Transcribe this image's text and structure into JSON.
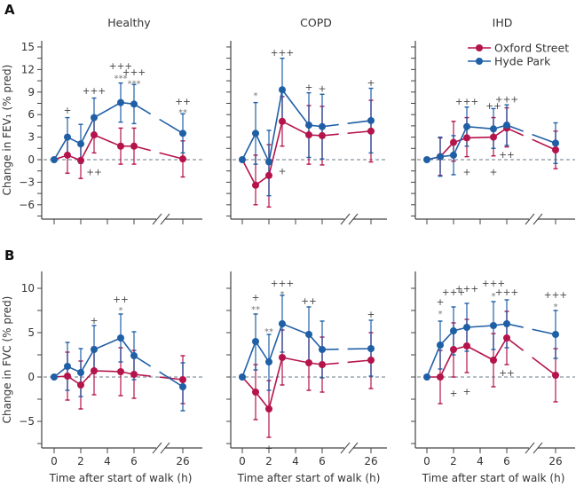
{
  "chart_data": {
    "type": "line",
    "legend": {
      "position": "top-right",
      "entries": [
        {
          "name": "Oxford Street",
          "color": "#b5134b"
        },
        {
          "name": "Hyde Park",
          "color": "#1f5fa6"
        }
      ]
    },
    "colors": {
      "oxford": "#b5134b",
      "hyde": "#1f5fa6",
      "axis": "#444444",
      "zero_line": "#6b7a87"
    },
    "x": [
      0,
      1,
      2,
      3,
      5,
      6,
      26
    ],
    "x_ticks": [
      0,
      2,
      4,
      6,
      26
    ],
    "x_tick_labels": [
      "0",
      "2",
      "4",
      "6",
      "26"
    ],
    "x_break": "between 6 and 26",
    "xlabel": "Time after start of walk (h)",
    "rows": [
      {
        "letter": "A",
        "ylabel": "Change in FEV₁ (% pred)",
        "ylim": [
          -7.5,
          16.5
        ],
        "y_ticks": [
          15,
          12,
          9,
          6,
          3,
          0,
          -3,
          -6
        ],
        "y_tick_labels": [
          "15",
          "12",
          "9",
          "6",
          "3",
          "0",
          "−3",
          "−6"
        ],
        "y_minor_step": 1.5,
        "show_x_tick_labels": false,
        "panels": [
          {
            "title": "Healthy",
            "series": [
              {
                "name": "Oxford Street",
                "values": [
                  0,
                  0.6,
                  -0.1,
                  3.3,
                  1.8,
                  1.8,
                  0.1
                ],
                "lower": [
                  0,
                  -1.8,
                  -2.5,
                  0.9,
                  -0.6,
                  -0.6,
                  -2.3
                ],
                "upper": [
                  0,
                  3.0,
                  2.3,
                  5.7,
                  4.2,
                  4.2,
                  2.5
                ]
              },
              {
                "name": "Hyde Park",
                "values": [
                  0,
                  3.0,
                  2.1,
                  5.6,
                  7.6,
                  7.4,
                  3.5
                ],
                "lower": [
                  0,
                  0.4,
                  -0.5,
                  3.0,
                  5.0,
                  4.8,
                  0.9
                ],
                "upper": [
                  0,
                  5.6,
                  4.7,
                  8.2,
                  10.2,
                  10.0,
                  6.1
                ]
              }
            ],
            "annotations": [
              {
                "x": 1,
                "y": 6.6,
                "text": "+",
                "kind": "plus"
              },
              {
                "x": 3,
                "y": 9.2,
                "text": "+++",
                "kind": "plus"
              },
              {
                "x": 5,
                "y": 12.5,
                "text": "+++",
                "kind": "plus"
              },
              {
                "x": 5,
                "y": 10.9,
                "text": "***",
                "kind": "star"
              },
              {
                "x": 6,
                "y": 11.7,
                "text": "+++",
                "kind": "plus"
              },
              {
                "x": 6,
                "y": 10.2,
                "text": "***",
                "kind": "star"
              },
              {
                "x": 26,
                "y": 7.8,
                "text": "++",
                "kind": "plus"
              },
              {
                "x": 26,
                "y": 6.4,
                "text": "**",
                "kind": "star"
              },
              {
                "x": 3,
                "y": -1.6,
                "text": "++",
                "kind": "plus"
              }
            ]
          },
          {
            "title": "COPD",
            "series": [
              {
                "name": "Oxford Street",
                "values": [
                  0,
                  -3.4,
                  -2.1,
                  5.1,
                  3.3,
                  3.2,
                  3.8
                ],
                "lower": [
                  0,
                  -6.0,
                  -6.3,
                  1.8,
                  -0.6,
                  -0.7,
                  -0.3
                ],
                "upper": [
                  0,
                  0.6,
                  2.0,
                  8.4,
                  7.2,
                  7.1,
                  7.9
                ]
              },
              {
                "name": "Hyde Park",
                "values": [
                  0,
                  3.5,
                  -0.3,
                  9.3,
                  4.6,
                  4.4,
                  5.2
                ],
                "lower": [
                  0,
                  -0.6,
                  -4.8,
                  5.1,
                  0.3,
                  0.1,
                  0.9
                ],
                "upper": [
                  0,
                  7.6,
                  3.9,
                  13.5,
                  8.9,
                  8.7,
                  9.5
                ]
              }
            ],
            "annotations": [
              {
                "x": 1,
                "y": 8.6,
                "text": "*",
                "kind": "star"
              },
              {
                "x": 3,
                "y": 14.3,
                "text": "+++",
                "kind": "plus"
              },
              {
                "x": 5,
                "y": 9.7,
                "text": "+",
                "kind": "plus"
              },
              {
                "x": 6,
                "y": 9.5,
                "text": "+",
                "kind": "plus"
              },
              {
                "x": 26,
                "y": 10.3,
                "text": "+",
                "kind": "plus"
              },
              {
                "x": 3,
                "y": -1.5,
                "text": "+",
                "kind": "plus"
              }
            ]
          },
          {
            "title": "IHD",
            "series": [
              {
                "name": "Oxford Street",
                "values": [
                  0,
                  0.4,
                  2.3,
                  2.9,
                  3.0,
                  4.2,
                  1.3
                ],
                "lower": [
                  0,
                  -2.1,
                  -0.2,
                  0.4,
                  0.5,
                  1.7,
                  -1.2
                ],
                "upper": [
                  0,
                  2.9,
                  5.1,
                  5.6,
                  5.6,
                  6.9,
                  3.8
                ]
              },
              {
                "name": "Hyde Park",
                "values": [
                  0,
                  0.4,
                  0.6,
                  4.4,
                  4.1,
                  4.6,
                  2.2
                ],
                "lower": [
                  0,
                  -2.2,
                  -2.0,
                  1.8,
                  1.5,
                  1.9,
                  -0.5
                ],
                "upper": [
                  0,
                  3.0,
                  3.2,
                  7.0,
                  6.8,
                  7.3,
                  4.9
                ]
              }
            ],
            "annotations": [
              {
                "x": 3,
                "y": 7.8,
                "text": "+++",
                "kind": "plus"
              },
              {
                "x": 5,
                "y": 7.2,
                "text": "++",
                "kind": "plus"
              },
              {
                "x": 6,
                "y": 8.1,
                "text": "+++",
                "kind": "plus"
              },
              {
                "x": 3,
                "y": -1.6,
                "text": "+",
                "kind": "plus"
              },
              {
                "x": 5,
                "y": -1.6,
                "text": "+",
                "kind": "plus"
              },
              {
                "x": 6,
                "y": 0.7,
                "text": "++",
                "kind": "plus"
              }
            ]
          }
        ]
      },
      {
        "letter": "B",
        "ylabel": "Change in FVC (% pred)",
        "ylim": [
          -7.5,
          11.9
        ],
        "y_ticks": [
          10,
          5,
          0,
          -5
        ],
        "y_tick_labels": [
          "10",
          "5",
          "0",
          "−5"
        ],
        "y_minor_step": 2.5,
        "show_x_tick_labels": true,
        "panels": [
          {
            "title": "",
            "series": [
              {
                "name": "Oxford Street",
                "values": [
                  0,
                  0.1,
                  -0.9,
                  0.7,
                  0.6,
                  0.3,
                  -0.3
                ],
                "lower": [
                  0,
                  -2.6,
                  -3.6,
                  -2.0,
                  -2.1,
                  -2.4,
                  -3.0
                ],
                "upper": [
                  0,
                  2.8,
                  1.8,
                  3.4,
                  3.3,
                  3.0,
                  2.4
                ]
              },
              {
                "name": "Hyde Park",
                "values": [
                  0,
                  1.2,
                  0.5,
                  3.1,
                  4.4,
                  2.4,
                  -1.1
                ],
                "lower": [
                  0,
                  -1.5,
                  -2.2,
                  0.4,
                  1.7,
                  -0.3,
                  -3.8
                ],
                "upper": [
                  0,
                  3.9,
                  3.2,
                  5.8,
                  7.1,
                  5.1,
                  1.6
                ]
              }
            ],
            "annotations": [
              {
                "x": 3,
                "y": 6.4,
                "text": "+",
                "kind": "plus"
              },
              {
                "x": 5,
                "y": 8.8,
                "text": "++",
                "kind": "plus"
              },
              {
                "x": 5,
                "y": 7.6,
                "text": "*",
                "kind": "star"
              }
            ]
          },
          {
            "title": "",
            "series": [
              {
                "name": "Oxford Street",
                "values": [
                  0,
                  -1.7,
                  -3.6,
                  2.2,
                  1.6,
                  1.4,
                  1.9
                ],
                "lower": [
                  0,
                  -4.8,
                  -6.8,
                  -0.9,
                  -1.5,
                  -1.7,
                  -1.3
                ],
                "upper": [
                  0,
                  1.4,
                  -0.4,
                  5.3,
                  4.7,
                  4.5,
                  5.0
                ]
              },
              {
                "name": "Hyde Park",
                "values": [
                  0,
                  4.0,
                  1.7,
                  6.0,
                  4.8,
                  3.1,
                  3.2
                ],
                "lower": [
                  0,
                  0.8,
                  -1.5,
                  2.8,
                  1.5,
                  -0.1,
                  0.1
                ],
                "upper": [
                  0,
                  7.1,
                  4.8,
                  9.2,
                  7.9,
                  6.3,
                  6.4
                ]
              }
            ],
            "annotations": [
              {
                "x": 1,
                "y": 9.0,
                "text": "+",
                "kind": "plus"
              },
              {
                "x": 1,
                "y": 7.7,
                "text": "**",
                "kind": "star"
              },
              {
                "x": 2,
                "y": 5.2,
                "text": "**",
                "kind": "star"
              },
              {
                "x": 3,
                "y": 10.6,
                "text": "+++",
                "kind": "plus"
              },
              {
                "x": 3,
                "y": 9.4,
                "text": "*",
                "kind": "star"
              },
              {
                "x": 5,
                "y": 8.6,
                "text": "++",
                "kind": "plus"
              },
              {
                "x": 26,
                "y": 7.1,
                "text": "+",
                "kind": "plus"
              },
              {
                "x": 2,
                "y": -8.0,
                "text": "+",
                "kind": "plus"
              }
            ]
          },
          {
            "title": "",
            "series": [
              {
                "name": "Oxford Street",
                "values": [
                  0,
                  0.0,
                  3.1,
                  3.5,
                  1.9,
                  4.4,
                  0.2
                ],
                "lower": [
                  0,
                  -3.0,
                  0.0,
                  0.5,
                  -1.1,
                  1.4,
                  -2.8
                ],
                "upper": [
                  0,
                  3.0,
                  6.1,
                  6.5,
                  4.9,
                  7.4,
                  3.2
                ]
              },
              {
                "name": "Hyde Park",
                "values": [
                  0,
                  3.6,
                  5.2,
                  5.6,
                  5.8,
                  6.0,
                  4.8
                ],
                "lower": [
                  0,
                  0.9,
                  2.5,
                  2.9,
                  3.1,
                  3.3,
                  2.1
                ],
                "upper": [
                  0,
                  6.3,
                  7.9,
                  8.3,
                  8.5,
                  8.7,
                  7.5
                ]
              }
            ],
            "annotations": [
              {
                "x": 1,
                "y": 8.5,
                "text": "+",
                "kind": "plus"
              },
              {
                "x": 1,
                "y": 7.2,
                "text": "*",
                "kind": "star"
              },
              {
                "x": 2,
                "y": 9.6,
                "text": "+++",
                "kind": "plus"
              },
              {
                "x": 3,
                "y": 10.0,
                "text": "+++",
                "kind": "plus"
              },
              {
                "x": 5,
                "y": 10.6,
                "text": "+++",
                "kind": "plus"
              },
              {
                "x": 5,
                "y": 9.2,
                "text": "*",
                "kind": "star"
              },
              {
                "x": 6,
                "y": 9.6,
                "text": "+++",
                "kind": "plus"
              },
              {
                "x": 26,
                "y": 9.3,
                "text": "+++",
                "kind": "plus"
              },
              {
                "x": 26,
                "y": 8.0,
                "text": "*",
                "kind": "star"
              },
              {
                "x": 2,
                "y": -1.8,
                "text": "+",
                "kind": "plus"
              },
              {
                "x": 3,
                "y": -1.6,
                "text": "+",
                "kind": "plus"
              },
              {
                "x": 6,
                "y": 0.5,
                "text": "++",
                "kind": "plus"
              }
            ]
          }
        ]
      }
    ]
  }
}
